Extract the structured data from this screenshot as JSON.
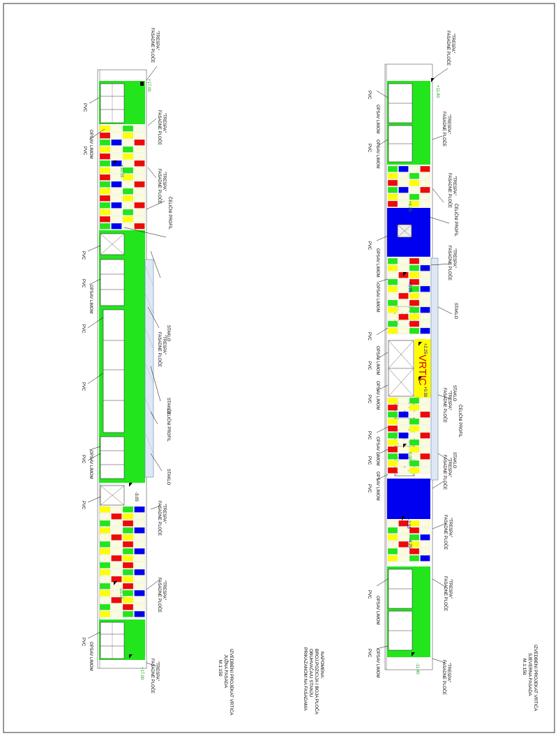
{
  "labels": {
    "pvc": "PVC",
    "opsav": "OPSAV LIMOM",
    "trespa_l1": "\"TRESPA\"",
    "trespa_l2": "FASADNE PLOČE",
    "celicni_profil": "ČELIČNI PROFIL",
    "staklo": "STAKLO"
  },
  "elevations": {
    "south": [
      "+17.00",
      "+10.55",
      "-3.05",
      "-10.15",
      "+17.00"
    ],
    "north": [
      "+11.40",
      "+6.25",
      "+3.05",
      "+2.25",
      "+0.30",
      "0.00",
      "-2.55",
      "-4.25",
      "-11.40"
    ]
  },
  "vrtic_label": "VRTIC",
  "titles": {
    "south": [
      "IZVEDBENI PROJEKAT VRTIĆA",
      "JUŽNA FASADA",
      "M.1:150"
    ],
    "north": [
      "IZVEDBENI PROJEKAT VRTIĆA",
      "SJEVERNA FASADA",
      "M.1:150"
    ],
    "note": [
      "NAPOMENA:",
      "BROJ,POZICIJA I BOJA PLOČA",
      "OBUHVAĆA/U STANJU",
      "PRIKAZANOM NA FASADAMA"
    ]
  },
  "palette": {
    "green": "#22e51c",
    "blue": "#0000f0",
    "red": "#ee0a0a",
    "yellow": "#ffff00",
    "cream": "#fbfbe0"
  }
}
